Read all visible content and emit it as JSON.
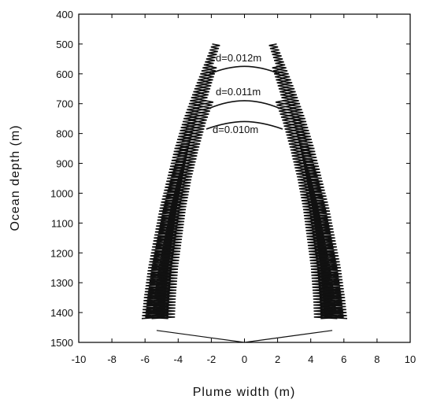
{
  "chart_data": {
    "type": "line",
    "xlabel": "Plume width  (m)",
    "ylabel": "Ocean depth  (m)",
    "xlim": [
      -10,
      10
    ],
    "ylim": [
      400,
      1500
    ],
    "y_inverted": true,
    "grid": false,
    "xticks": [
      "-10",
      "-8",
      "-6",
      "-4",
      "-2",
      "0",
      "2",
      "4",
      "6",
      "8",
      "10"
    ],
    "yticks": [
      "400",
      "500",
      "600",
      "700",
      "800",
      "900",
      "1000",
      "1100",
      "1200",
      "1300",
      "1400",
      "1500"
    ],
    "series": [
      {
        "name": "d=0.012m",
        "top_depth": 575,
        "cap_halfwidth": 1.8,
        "envelope_depth": [
          500,
          575,
          650,
          750,
          850,
          950,
          1050,
          1150,
          1250,
          1350,
          1420
        ],
        "envelope_halfwidth": [
          1.7,
          2.2,
          2.7,
          3.3,
          3.8,
          4.2,
          4.6,
          4.9,
          5.2,
          5.4,
          5.5
        ]
      },
      {
        "name": "d=0.011m",
        "top_depth": 690,
        "cap_halfwidth": 1.8,
        "envelope_depth": [
          575,
          690,
          750,
          850,
          950,
          1050,
          1150,
          1250,
          1350,
          1420
        ],
        "envelope_halfwidth": [
          1.9,
          2.6,
          3.0,
          3.5,
          4.0,
          4.4,
          4.7,
          5.0,
          5.2,
          5.3
        ]
      },
      {
        "name": "d=0.010m",
        "top_depth": 760,
        "cap_halfwidth": 2.0,
        "envelope_depth": [
          690,
          760,
          850,
          950,
          1050,
          1150,
          1250,
          1350,
          1420
        ],
        "envelope_halfwidth": [
          2.1,
          2.6,
          3.1,
          3.6,
          4.0,
          4.3,
          4.6,
          4.8,
          4.9
        ]
      }
    ],
    "base": {
      "depth_top": 1460,
      "halfwidth": 5.3,
      "apex_depth": 1500
    },
    "annotations": [
      "d=0.012m",
      "d=0.011m",
      "d=0.010m"
    ]
  }
}
